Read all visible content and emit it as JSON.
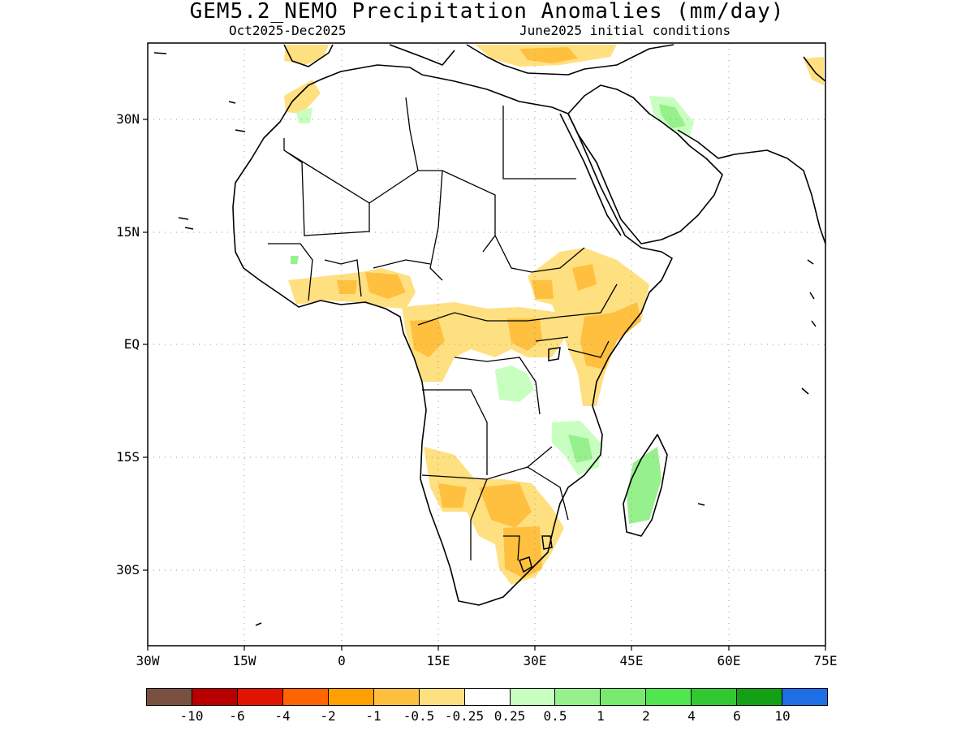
{
  "title": "GEM5.2_NEMO Precipitation Anomalies (mm/day)",
  "subtitle_left": "Oct2025-Dec2025",
  "subtitle_right": "June2025 initial conditions",
  "map": {
    "region": "Africa",
    "lon_range": [
      -30,
      75
    ],
    "lat_range": [
      -40,
      40
    ],
    "lat_ticks": [
      "30N",
      "15N",
      "EQ",
      "15S",
      "30S"
    ],
    "lon_ticks": [
      "30W",
      "15W",
      "0",
      "15E",
      "30E",
      "45E",
      "60E",
      "75E"
    ],
    "grid": true
  },
  "colorbar": {
    "colors": [
      "#7a5040",
      "#b80000",
      "#e01400",
      "#ff6400",
      "#ffa000",
      "#ffc040",
      "#ffe080",
      "#ffffff",
      "#c8ffc0",
      "#96f08c",
      "#78eb6e",
      "#50e650",
      "#32c832",
      "#14a014",
      "#1e6ee6"
    ],
    "labels": [
      "-10",
      "-6",
      "-4",
      "-2",
      "-1",
      "-0.5",
      "-0.25",
      "0.25",
      "0.5",
      "1",
      "2",
      "4",
      "6",
      "10"
    ]
  }
}
